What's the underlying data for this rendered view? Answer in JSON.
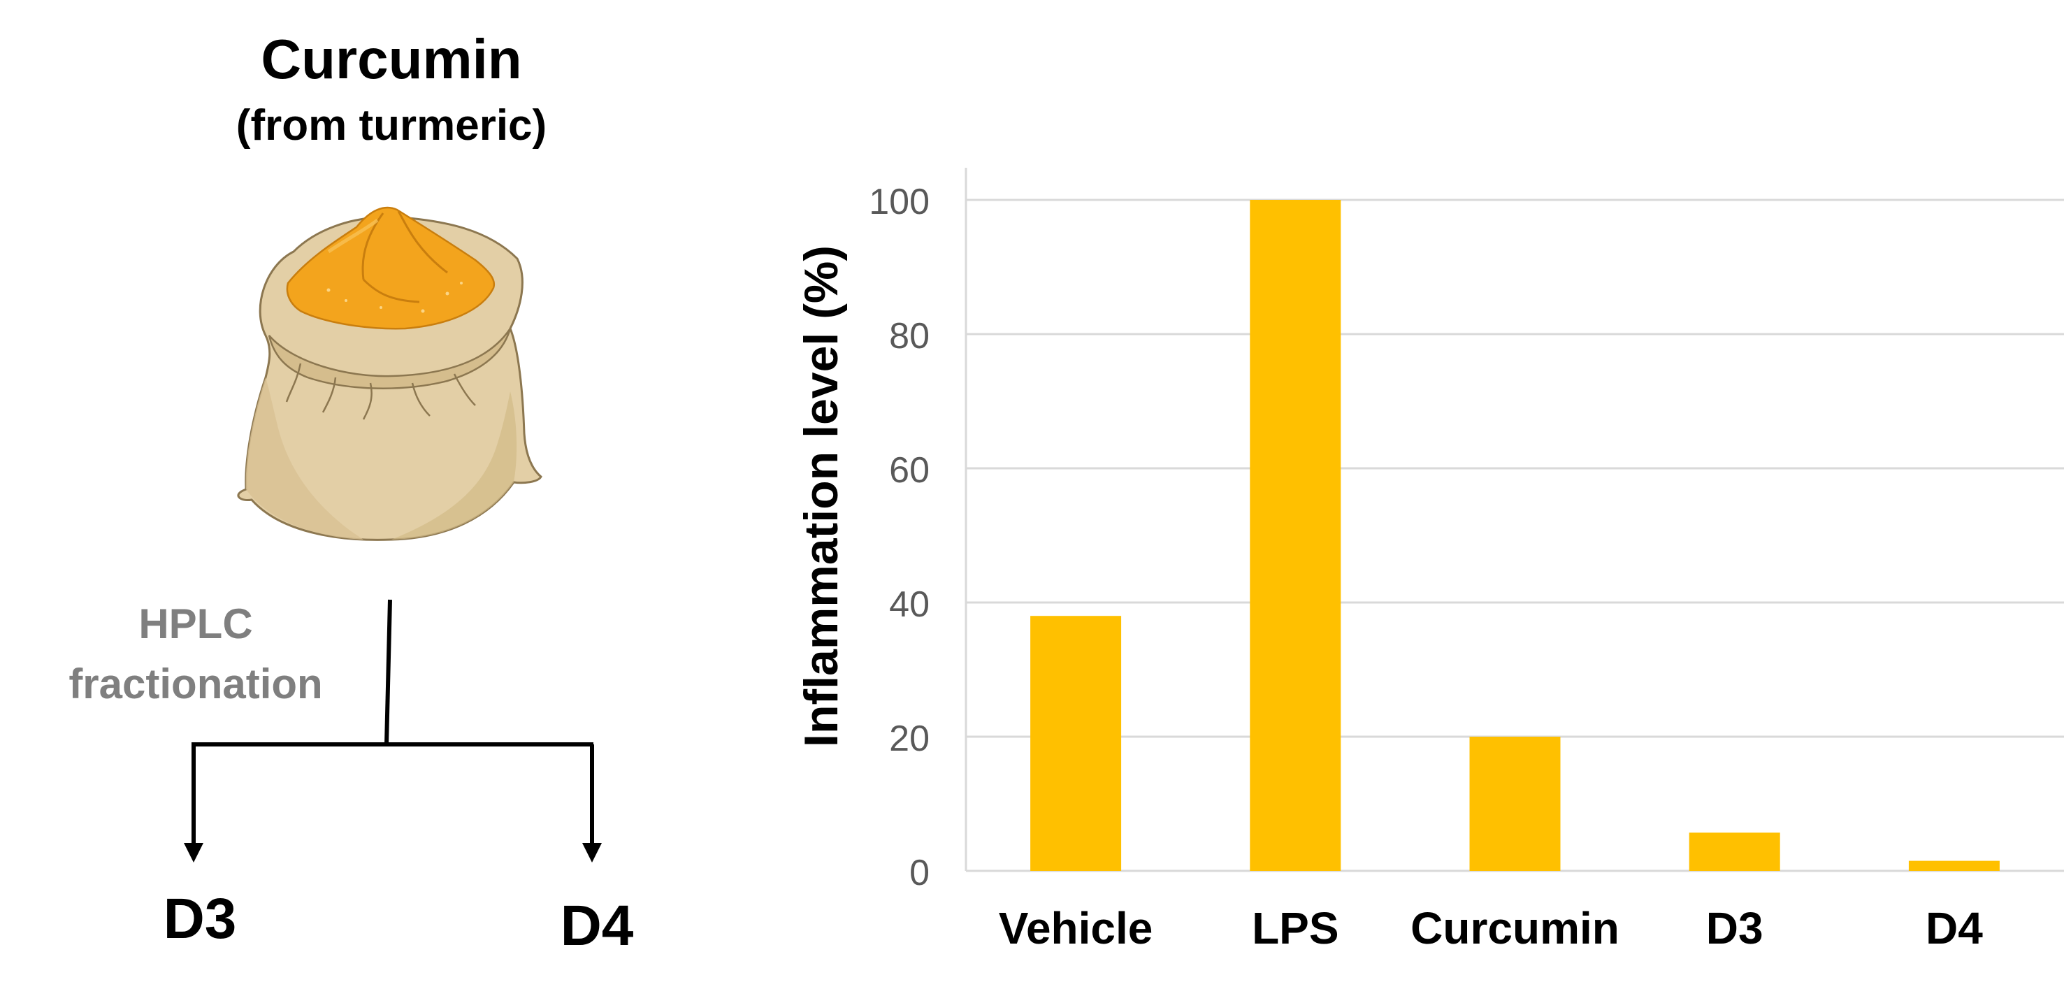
{
  "scheme": {
    "title": "Curcumin",
    "subtitle": "(from turmeric)",
    "process_label_line1": "HPLC",
    "process_label_line2": "fractionation",
    "fractions": [
      "D3",
      "D4"
    ],
    "icon": "spice-sack-icon",
    "colors": {
      "sack": "#e3cfa6",
      "sack_outline": "#8c7750",
      "spice": "#f3a41d",
      "arrow": "#000000",
      "process_text": "#7f7f7f"
    }
  },
  "chart_data": {
    "type": "bar",
    "categories": [
      "Vehicle",
      "LPS",
      "Curcumin",
      "D3",
      "D4"
    ],
    "values": [
      38,
      100,
      20,
      5.7,
      1.5
    ],
    "xlabel": "",
    "ylabel": "Inflammation level (%)",
    "ylim": [
      0,
      100
    ],
    "yticks": [
      0,
      20,
      40,
      60,
      80,
      100
    ],
    "grid": true,
    "bar_color": "#ffc000",
    "grid_color": "#d9d9d9",
    "tick_label_color": "#595959"
  }
}
